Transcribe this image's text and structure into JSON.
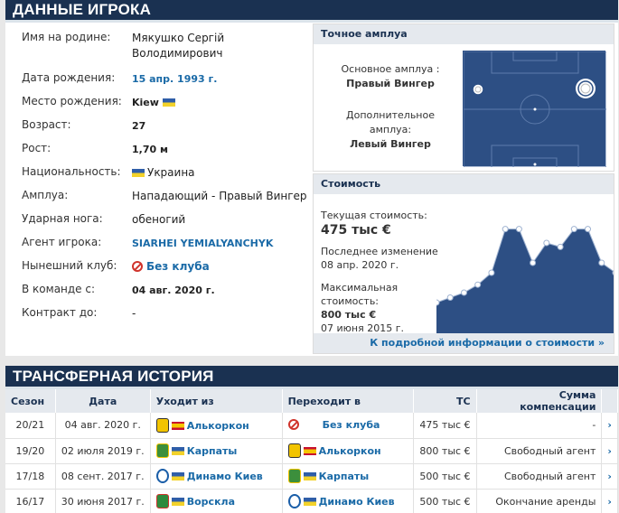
{
  "player_info": {
    "title": "ДАННЫЕ ИГРОКА",
    "rows": [
      {
        "label": "Имя на родине:",
        "value": "Мякушко Сергій Володимирович"
      },
      {
        "label": "Дата рождения:",
        "value": "15 апр. 1993 г."
      },
      {
        "label": "Место рождения:",
        "value": "Kiew"
      },
      {
        "label": "Возраст:",
        "value": "27"
      },
      {
        "label": "Рост:",
        "value": "1,70 м"
      },
      {
        "label": "Национальность:",
        "value": "Украина"
      },
      {
        "label": "Амплуа:",
        "value": "Нападающий - Правый Вингер"
      },
      {
        "label": "Ударная нога:",
        "value": "обеногий"
      },
      {
        "label": "Агент игрока:",
        "value": "SIARHEI YEMIALYANCHYK"
      },
      {
        "label": "Нынешний клуб:",
        "value": "Без клуба"
      },
      {
        "label": "В команде с:",
        "value": "04 авг. 2020 г."
      },
      {
        "label": "Контракт до:",
        "value": "-"
      }
    ]
  },
  "position_box": {
    "title": "Точное амплуа",
    "main_label": "Основное амплуа :",
    "main_value": "Правый Вингер",
    "other_label_1": "Дополнительное",
    "other_label_2": "амплуа:",
    "other_value": "Левый Вингер"
  },
  "value_box": {
    "title": "Стоимость",
    "current_label": "Текущая стоимость:",
    "current_value": "475 тыс €",
    "last_change_label": "Последнее изменение",
    "last_change_date": "08 апр. 2020 г.",
    "max_label_1": "Максимальная",
    "max_label_2": "стоимость:",
    "max_value": "800 тыс €",
    "max_date": "07 июня 2015 г.",
    "more_link": "К подробной информации о стоимости  »"
  },
  "chart_data": {
    "type": "area",
    "values": [
      100,
      125,
      150,
      190,
      250,
      470,
      470,
      300,
      400,
      380,
      470,
      470,
      300,
      250
    ]
  },
  "transfers": {
    "title": "ТРАНСФЕРНАЯ ИСТОРИЯ",
    "headers": [
      "Сезон",
      "Дата",
      "Уходит из",
      "Переходит в",
      "ТС",
      "Сумма компенсации"
    ],
    "rows": [
      {
        "season": "20/21",
        "date": "04 авг. 2020 г.",
        "from": "Алькоркон",
        "to": "Без клуба",
        "mv": "475 тыс €",
        "fee": "-"
      },
      {
        "season": "19/20",
        "date": "02 июля 2019 г.",
        "from": "Карпаты",
        "to": "Алькоркон",
        "mv": "800 тыс €",
        "fee": "Свободный агент"
      },
      {
        "season": "17/18",
        "date": "08 сент. 2017 г.",
        "from": "Динамо Киев",
        "to": "Карпаты",
        "mv": "500 тыс €",
        "fee": "Свободный агент"
      },
      {
        "season": "16/17",
        "date": "30 июня 2017 г.",
        "from": "Ворскла",
        "to": "Динамо Киев",
        "mv": "500 тыс €",
        "fee": "Окончание аренды"
      }
    ]
  },
  "colors": {
    "header": "#1a3151",
    "link": "#1a6aa7",
    "field": "#2d4f84"
  }
}
